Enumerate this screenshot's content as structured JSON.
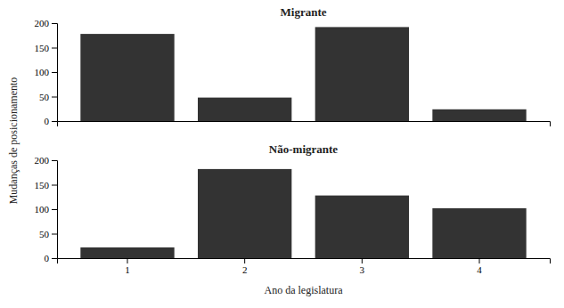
{
  "chart_data": [
    {
      "type": "bar",
      "title": "Migrante",
      "ylabel": "Mudanças de posicionamento",
      "categories": [
        1,
        2,
        3,
        4
      ],
      "values": [
        178,
        48,
        192,
        24
      ],
      "color": "#333333",
      "ylim": [
        0,
        200
      ],
      "yticks": [
        0,
        50,
        100,
        150,
        200
      ],
      "tick_labels": "y"
    },
    {
      "type": "bar",
      "title": "Não-migrante",
      "xlabel": "Ano da legislatura",
      "categories": [
        1,
        2,
        3,
        4
      ],
      "values": [
        22,
        182,
        128,
        102
      ],
      "color": "#333333",
      "ylim": [
        0,
        200
      ],
      "yticks": [
        0,
        50,
        100,
        150,
        200
      ]
    }
  ]
}
